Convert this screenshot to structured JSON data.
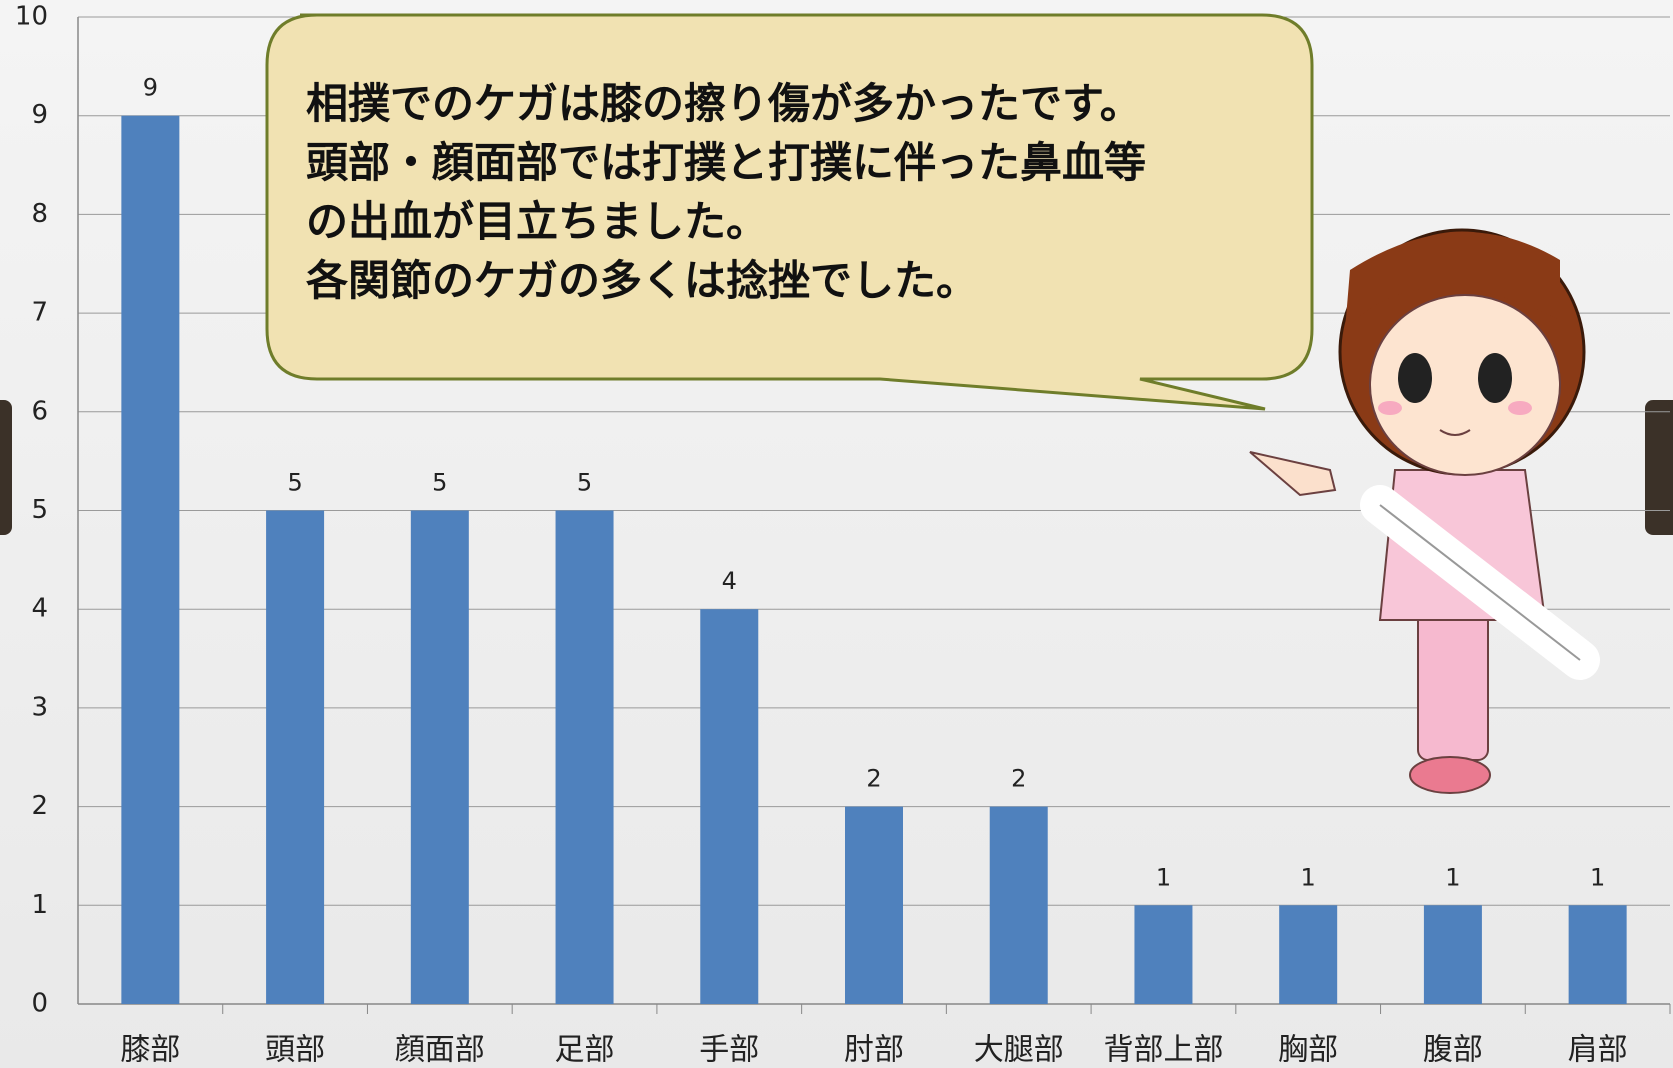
{
  "chart_data": {
    "type": "bar",
    "categories": [
      "膝部",
      "頭部",
      "顔面部",
      "足部",
      "手部",
      "肘部",
      "大腿部",
      "背部上部",
      "胸部",
      "腹部",
      "肩部"
    ],
    "values": [
      9,
      5,
      5,
      5,
      4,
      2,
      2,
      1,
      1,
      1,
      1
    ],
    "color": "#4f81bd",
    "ylim": [
      0,
      10
    ],
    "yticks": [
      0,
      1,
      2,
      3,
      4,
      5,
      6,
      7,
      8,
      9,
      10
    ],
    "grid": true,
    "annotation": [
      "相撲でのケガは膝の擦り傷が多かったです。",
      "頭部・顔面部では打撲と打撲に伴った鼻血等",
      "の出血が目立ちました。",
      "各関節のケガの多くは捻挫でした。"
    ]
  }
}
